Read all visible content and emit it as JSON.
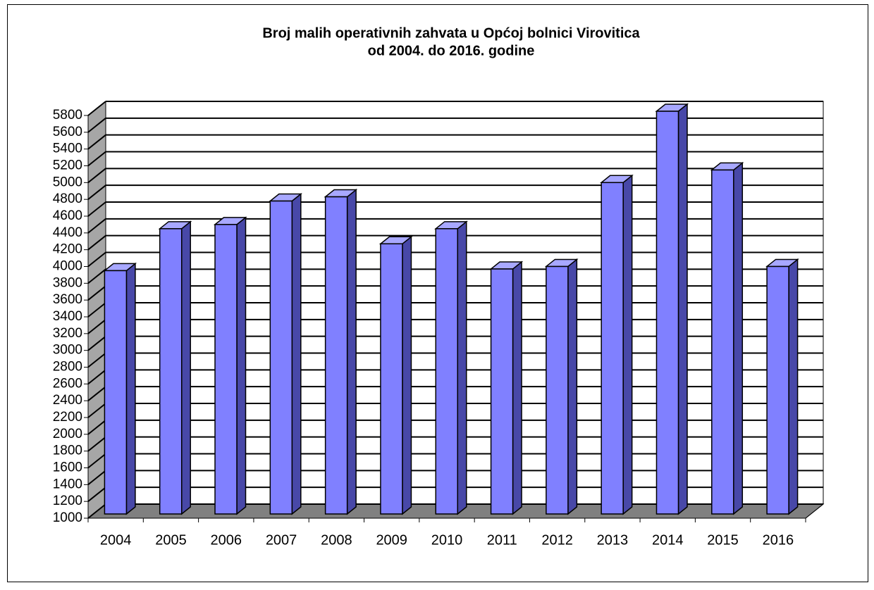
{
  "chart_data": {
    "type": "bar",
    "title": [
      "Broj malih operativnih zahvata u Općoj bolnici Virovitica",
      "od 2004. do 2016. godine"
    ],
    "categories": [
      "2004",
      "2005",
      "2006",
      "2007",
      "2008",
      "2009",
      "2010",
      "2011",
      "2012",
      "2013",
      "2014",
      "2015",
      "2016"
    ],
    "values": [
      3900,
      4400,
      4450,
      4730,
      4780,
      4220,
      4400,
      3920,
      3950,
      4950,
      5800,
      5100,
      3950
    ],
    "color": "#8080ff",
    "ylim": [
      1000,
      5800
    ],
    "yticks": [
      1000,
      1200,
      1400,
      1600,
      1800,
      2000,
      2200,
      2400,
      2600,
      2800,
      3000,
      3200,
      3400,
      3600,
      3800,
      4000,
      4200,
      4400,
      4600,
      4800,
      5000,
      5200,
      5400,
      5600,
      5800
    ],
    "grid": true
  }
}
